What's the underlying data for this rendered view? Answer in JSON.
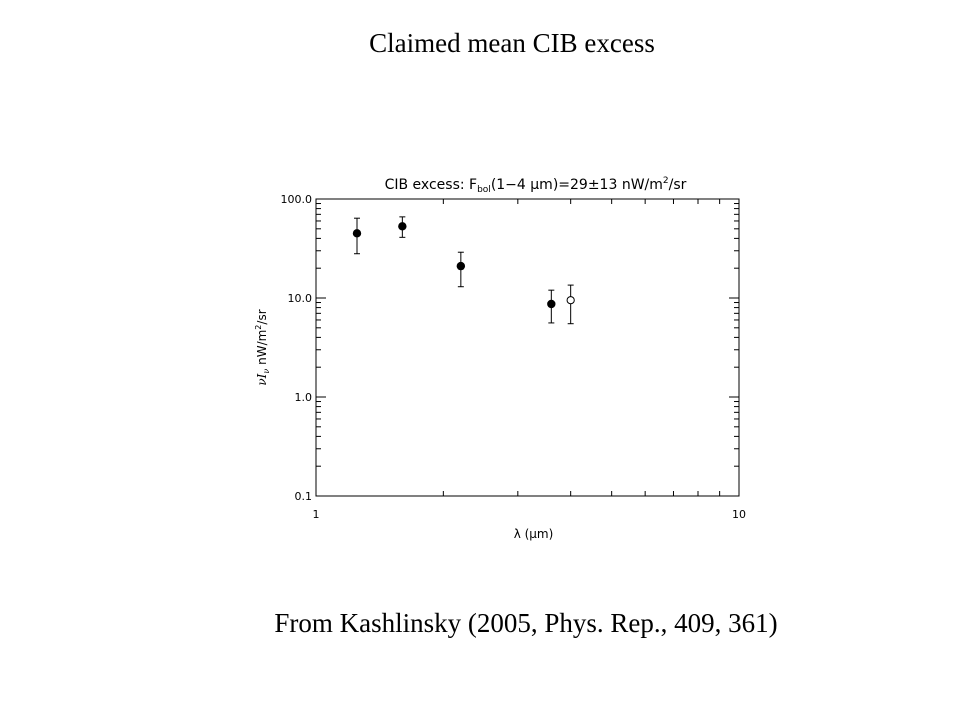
{
  "slide": {
    "title": "Claimed mean CIB excess",
    "caption": "From Kashlinsky (2005, Phys. Rep., 409, 361)"
  },
  "chart_data": {
    "type": "scatter",
    "title": "CIB excess: F_bol(1−4 μm)=29±13 nW/m²/sr",
    "title_parts": {
      "prefix": "CIB excess: F",
      "sub": "bol",
      "middle": "(1−4 μm)=29±13 nW/m",
      "sup": "2",
      "suffix": "/sr"
    },
    "xlabel": "λ (μm)",
    "ylabel_parts": {
      "quantity": "νI",
      "quantity_sub": "ν",
      "units_prefix": "nW/m",
      "units_sup": "2",
      "units_suffix": "/sr"
    },
    "xscale": "log",
    "yscale": "log",
    "xlim": [
      1,
      10
    ],
    "ylim": [
      0.1,
      100
    ],
    "x_ticklabels": [
      {
        "value": 1,
        "label": "1"
      },
      {
        "value": 10,
        "label": "10"
      }
    ],
    "y_ticklabels": [
      {
        "value": 0.1,
        "label": "0.1"
      },
      {
        "value": 1,
        "label": "1.0"
      },
      {
        "value": 10,
        "label": "10.0"
      },
      {
        "value": 100,
        "label": "100.0"
      }
    ],
    "grid": false,
    "series": [
      {
        "marker": "filled-circle",
        "points": [
          {
            "x": 1.25,
            "y": 45,
            "ylow": 28,
            "yhigh": 64
          },
          {
            "x": 1.6,
            "y": 53,
            "ylow": 41,
            "yhigh": 66
          },
          {
            "x": 2.2,
            "y": 21,
            "ylow": 13,
            "yhigh": 29
          },
          {
            "x": 3.6,
            "y": 8.7,
            "ylow": 5.6,
            "yhigh": 12
          }
        ]
      },
      {
        "marker": "open-circle",
        "points": [
          {
            "x": 4.0,
            "y": 9.5,
            "ylow": 5.5,
            "yhigh": 13.5
          }
        ]
      }
    ]
  }
}
